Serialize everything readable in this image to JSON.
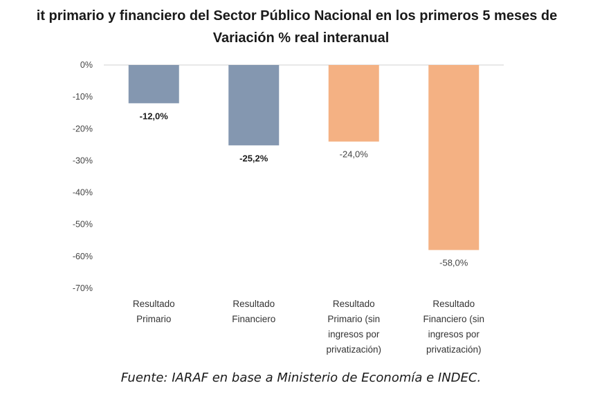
{
  "header": {
    "title_line1": "it primario y financiero del Sector Público Nacional en los primeros 5 meses de",
    "title_line2": "Variación % real interanual"
  },
  "footer": {
    "source": "Fuente: IARAF en base a Ministerio de Economía e INDEC."
  },
  "chart_data": {
    "type": "bar",
    "title": "it primario y financiero del Sector Público Nacional en los primeros 5 meses de",
    "subtitle": "Variación % real interanual",
    "xlabel": "",
    "ylabel": "",
    "ylim": [
      -70,
      0
    ],
    "yticks": [
      0,
      -10,
      -20,
      -30,
      -40,
      -50,
      -60,
      -70
    ],
    "ytick_labels": [
      "0%",
      "-10%",
      "-20%",
      "-30%",
      "-40%",
      "-50%",
      "-60%",
      "-70%"
    ],
    "grid": false,
    "legend": "none",
    "categories": [
      [
        "Resultado",
        "Primario"
      ],
      [
        "Resultado",
        "Financiero"
      ],
      [
        "Resultado",
        "Primario (sin",
        "ingresos por",
        "privatización)"
      ],
      [
        "Resultado",
        "Financiero (sin",
        "ingresos por",
        "privatización)"
      ]
    ],
    "values": [
      -12.0,
      -25.2,
      -24.0,
      -58.0
    ],
    "value_labels": [
      "-12,0%",
      "-25,2%",
      "-24,0%",
      "-58,0%"
    ],
    "label_bold": [
      true,
      true,
      false,
      false
    ],
    "colors": [
      "#8497b0",
      "#8497b0",
      "#f4b183",
      "#f4b183"
    ]
  }
}
